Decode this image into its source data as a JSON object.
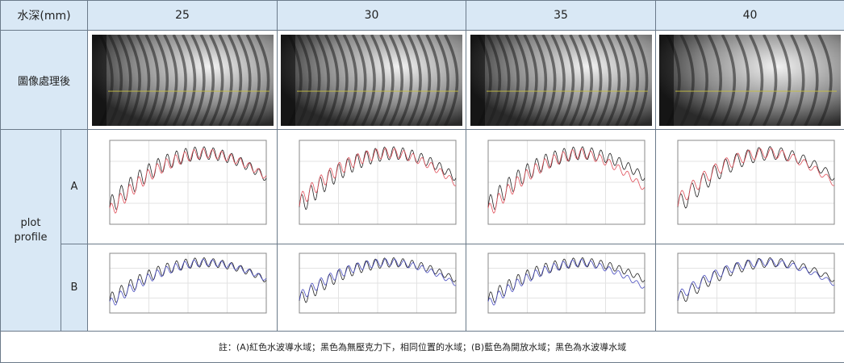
{
  "header": {
    "corner": "水深(mm)",
    "depths": [
      "25",
      "30",
      "35",
      "40"
    ]
  },
  "image_row_label": "圖像處理後",
  "plot_row_label": "plot profile",
  "sub_rows": [
    "A",
    "B"
  ],
  "note": "註：(A)紅色水波導水域；黑色為無壓克力下，相同位置的水域；(B)藍色為開放水域；黑色為水波導水域"
}
